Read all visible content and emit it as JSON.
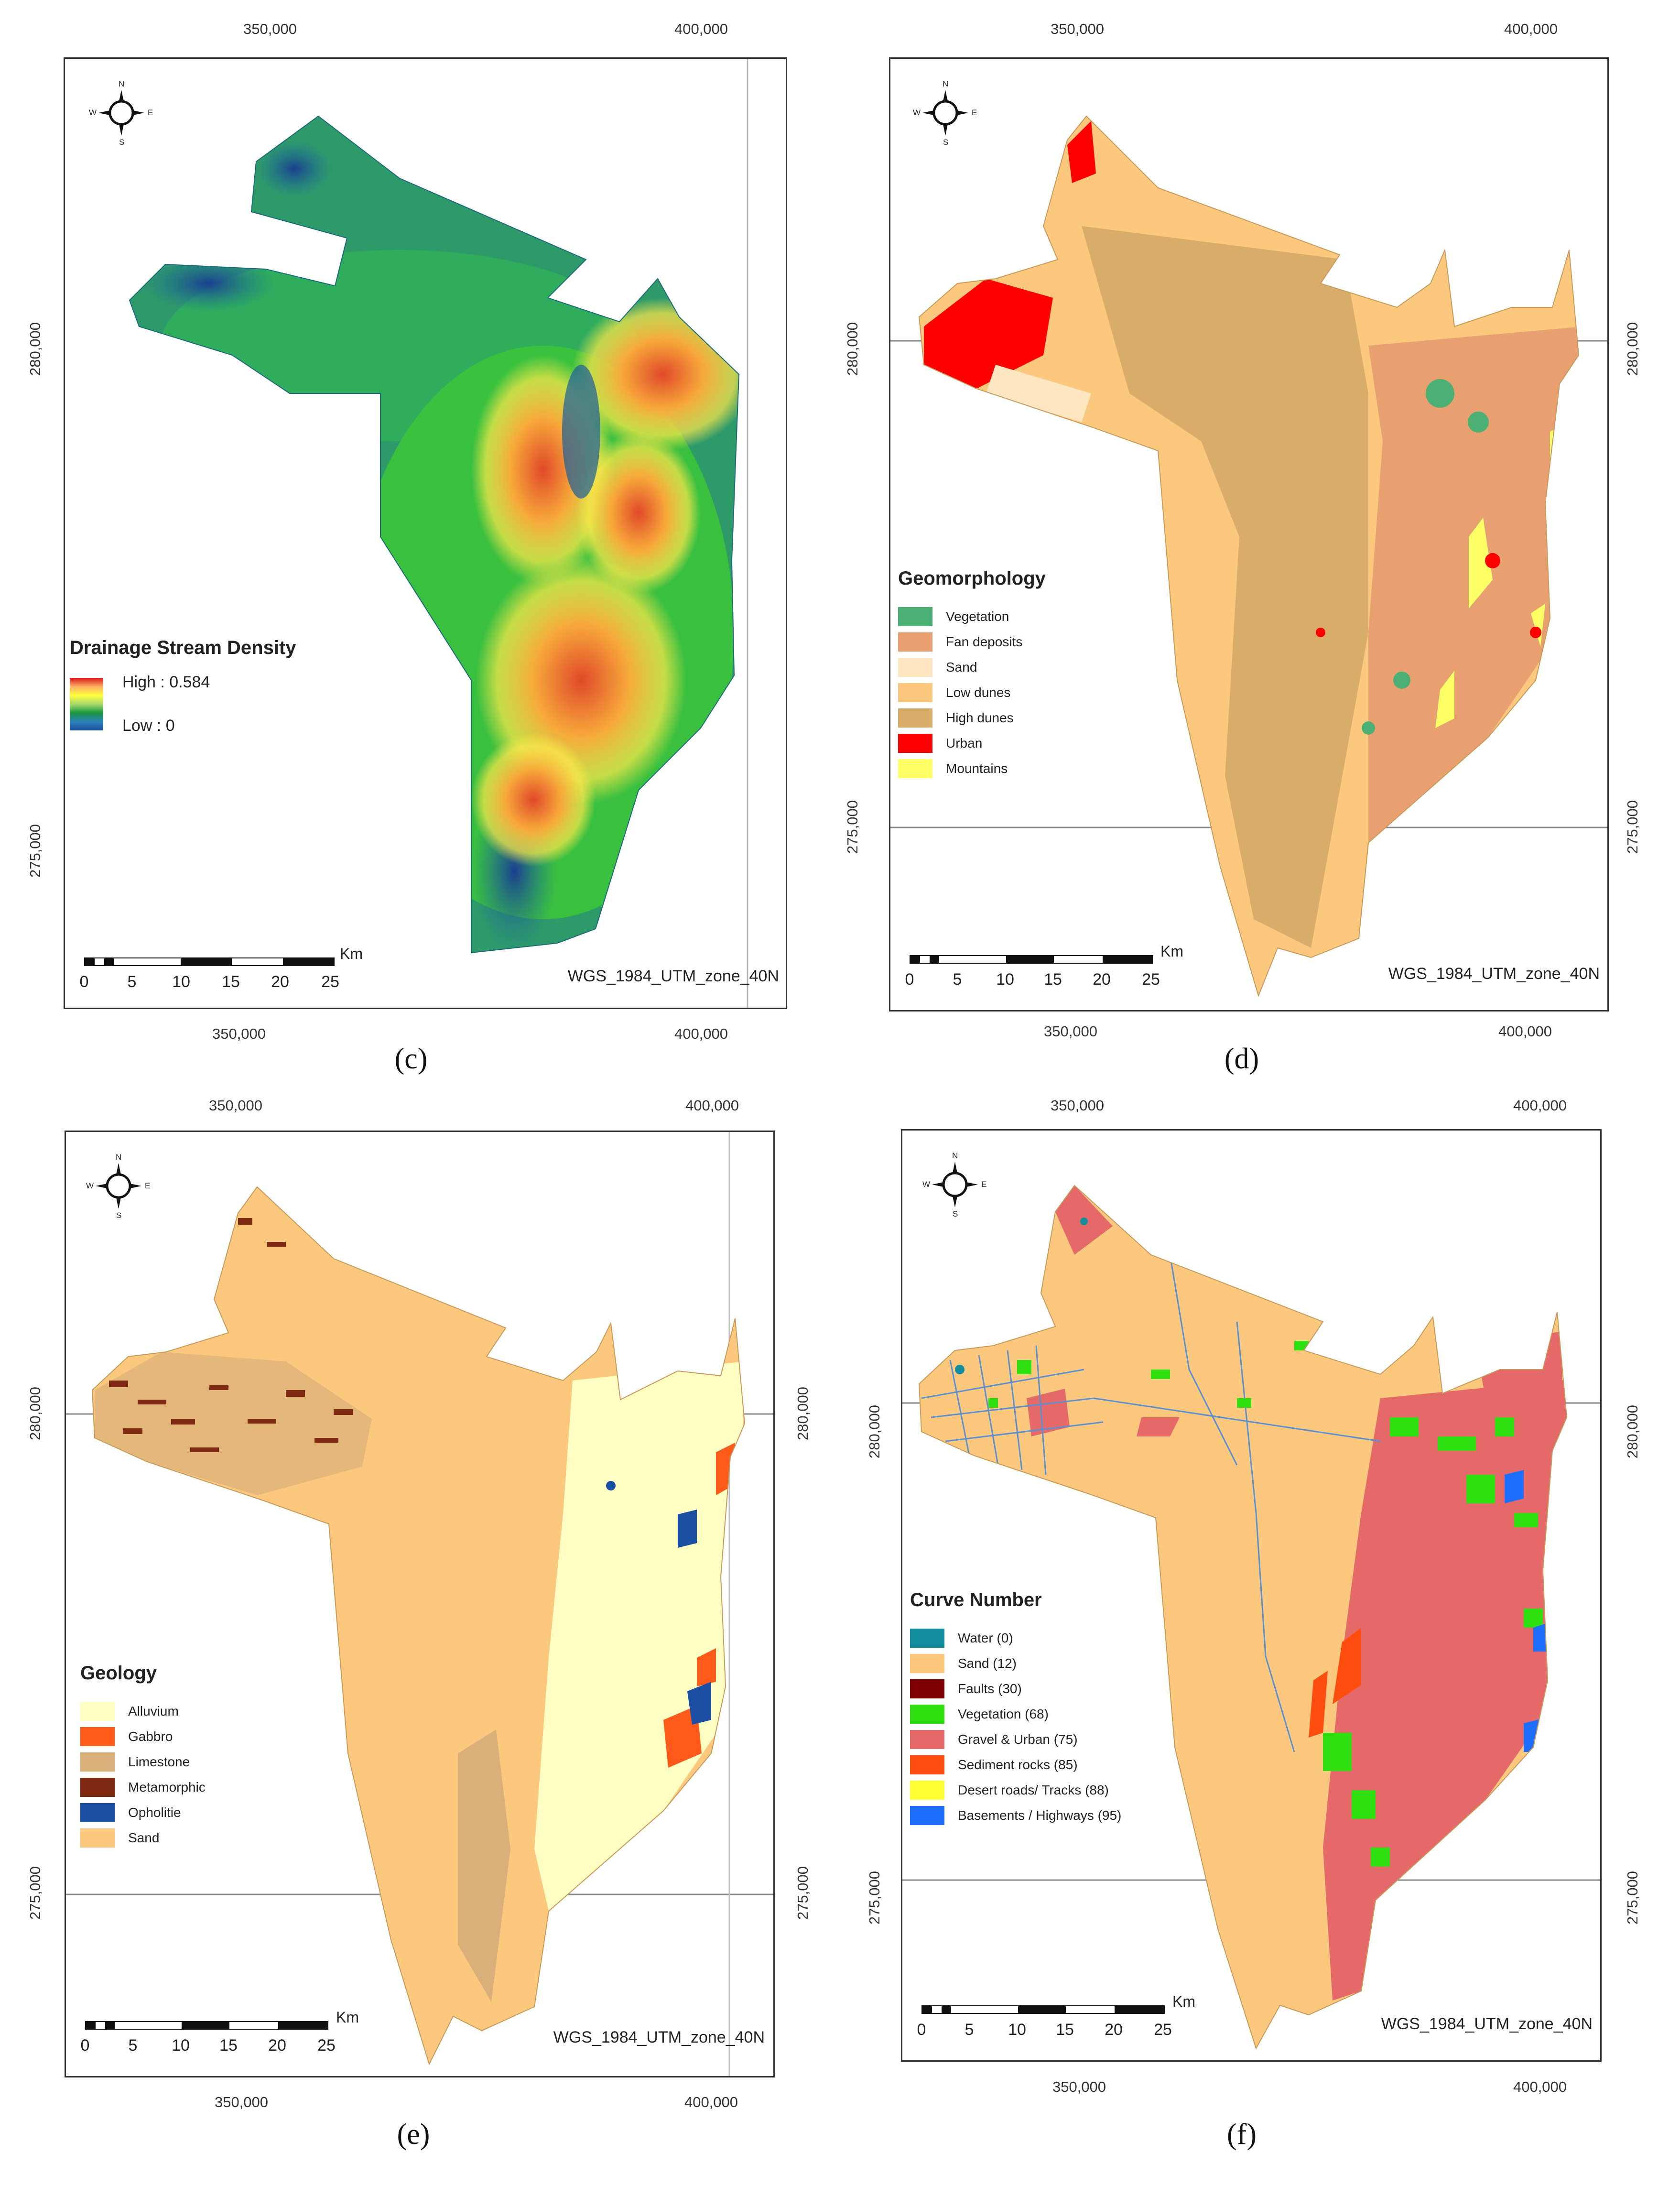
{
  "shared": {
    "x_labels": [
      "350,000",
      "400,000"
    ],
    "y_labels": [
      "280,000",
      "275,000"
    ],
    "projection": "WGS_1984_UTM_zone_40N",
    "scale": {
      "unit": "Km",
      "ticks": [
        "0",
        "5",
        "10",
        "15",
        "20",
        "25"
      ]
    },
    "compass": {
      "n": "N",
      "s": "S",
      "e": "E",
      "w": "W"
    }
  },
  "panels": [
    {
      "caption": "(c)",
      "legend": {
        "title": "Drainage Stream Density",
        "high": "High : 0.584",
        "low": "Low : 0"
      }
    },
    {
      "caption": "(d)",
      "legend": {
        "title": "Geomorphology",
        "items": [
          {
            "label": "Vegetation",
            "color": "#4caf73"
          },
          {
            "label": "Fan deposits",
            "color": "#e9a070"
          },
          {
            "label": "Sand",
            "color": "#fde6c0"
          },
          {
            "label": "Low dunes",
            "color": "#fbc87e"
          },
          {
            "label": "High dunes",
            "color": "#d8ad6a"
          },
          {
            "label": "Urban",
            "color": "#ff0000"
          },
          {
            "label": "Mountains",
            "color": "#ffff66"
          }
        ]
      }
    },
    {
      "caption": "(e)",
      "legend": {
        "title": "Geology",
        "items": [
          {
            "label": "Alluvium",
            "color": "#ffffc4"
          },
          {
            "label": "Gabbro",
            "color": "#ff5a1a"
          },
          {
            "label": "Limestone",
            "color": "#d9b079"
          },
          {
            "label": "Metamorphic",
            "color": "#7f2a12"
          },
          {
            "label": "Opholitie",
            "color": "#1a4fa3"
          },
          {
            "label": "Sand",
            "color": "#fbc87e"
          }
        ]
      }
    },
    {
      "caption": "(f)",
      "legend": {
        "title": "Curve Number",
        "items": [
          {
            "label": "Water (0)",
            "color": "#138e9e"
          },
          {
            "label": "Sand (12)",
            "color": "#fbc87e"
          },
          {
            "label": "Faults (30)",
            "color": "#7f0000"
          },
          {
            "label": "Vegetation (68)",
            "color": "#2ee00f"
          },
          {
            "label": "Gravel & Urban (75)",
            "color": "#e6696a"
          },
          {
            "label": "Sediment rocks (85)",
            "color": "#ff4d10"
          },
          {
            "label": "Desert roads/ Tracks (88)",
            "color": "#ffff33"
          },
          {
            "label": "Basements / Highways (95)",
            "color": "#1e6fff"
          }
        ]
      }
    }
  ]
}
